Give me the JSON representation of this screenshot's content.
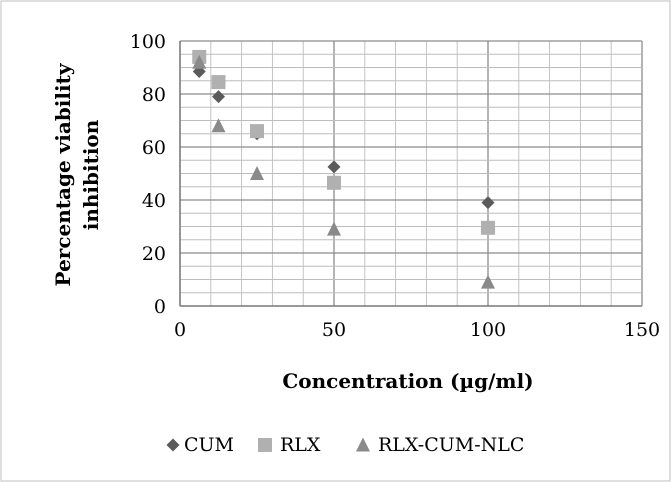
{
  "chart_data": {
    "type": "scatter",
    "title": "",
    "xlabel": "Concentration (µg/ml)",
    "ylabel_lines": [
      "Percentage viability",
      "inhibition"
    ],
    "xlim": [
      0,
      150
    ],
    "ylim": [
      0,
      100
    ],
    "x_ticks": [
      0,
      50,
      100,
      150
    ],
    "y_ticks": [
      0,
      20,
      40,
      60,
      80,
      100
    ],
    "x_minor_step": 10,
    "y_minor_step": 5,
    "grid": true,
    "legend_position": "bottom",
    "series": [
      {
        "name": "CUM",
        "marker": "diamond",
        "color": "#5a5a5a",
        "points": [
          [
            6.25,
            88.5
          ],
          [
            12.5,
            79
          ],
          [
            25,
            65
          ],
          [
            50,
            52.5
          ],
          [
            100,
            39
          ]
        ]
      },
      {
        "name": "RLX",
        "marker": "square",
        "color": "#b0b0b0",
        "points": [
          [
            6.25,
            94
          ],
          [
            12.5,
            84.5
          ],
          [
            25,
            66
          ],
          [
            50,
            46.5
          ],
          [
            100,
            29.5
          ]
        ]
      },
      {
        "name": "RLX-CUM-NLC",
        "marker": "triangle",
        "color": "#8a8a8a",
        "points": [
          [
            6.25,
            92
          ],
          [
            12.5,
            68
          ],
          [
            25,
            50
          ],
          [
            50,
            29
          ],
          [
            100,
            9
          ]
        ]
      }
    ]
  }
}
